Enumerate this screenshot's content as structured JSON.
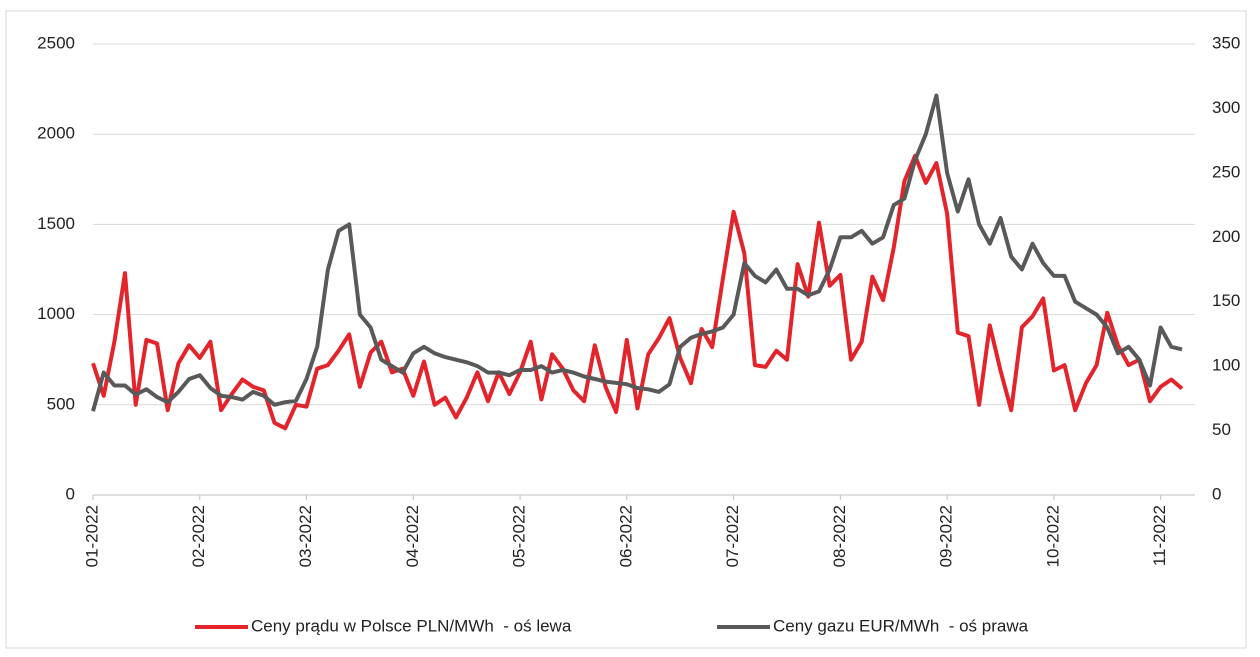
{
  "chart_data": {
    "type": "line",
    "categories": [
      "01-2022",
      null,
      null,
      null,
      null,
      null,
      null,
      null,
      null,
      null,
      "02-2022",
      null,
      null,
      null,
      null,
      null,
      null,
      null,
      null,
      null,
      "03-2022",
      null,
      null,
      null,
      null,
      null,
      null,
      null,
      null,
      null,
      "04-2022",
      null,
      null,
      null,
      null,
      null,
      null,
      null,
      null,
      null,
      "05-2022",
      null,
      null,
      null,
      null,
      null,
      null,
      null,
      null,
      null,
      "06-2022",
      null,
      null,
      null,
      null,
      null,
      null,
      null,
      null,
      null,
      "07-2022",
      null,
      null,
      null,
      null,
      null,
      null,
      null,
      null,
      null,
      "08-2022",
      null,
      null,
      null,
      null,
      null,
      null,
      null,
      null,
      null,
      "09-2022",
      null,
      null,
      null,
      null,
      null,
      null,
      null,
      null,
      null,
      "10-2022",
      null,
      null,
      null,
      null,
      null,
      null,
      null,
      null,
      null,
      "11-2022",
      null,
      null
    ],
    "series": [
      {
        "name": "Ceny prądu w Polsce PLN/MWh  - oś lewa",
        "color": "#e3242b",
        "values": [
          730,
          550,
          850,
          1230,
          500,
          860,
          840,
          470,
          730,
          830,
          760,
          850,
          470,
          560,
          640,
          600,
          580,
          400,
          370,
          500,
          490,
          700,
          720,
          800,
          890,
          600,
          790,
          850,
          680,
          700,
          550,
          740,
          500,
          540,
          430,
          540,
          680,
          520,
          680,
          560,
          680,
          850,
          530,
          780,
          700,
          580,
          520,
          830,
          600,
          460,
          860,
          480,
          780,
          870,
          980,
          760,
          620,
          920,
          820,
          1200,
          1570,
          1340,
          720,
          710,
          800,
          750,
          1280,
          1100,
          1510,
          1160,
          1220,
          750,
          850,
          1210,
          1080,
          1370,
          1740,
          1880,
          1730,
          1840,
          1560,
          900,
          880,
          500,
          940,
          690,
          470,
          930,
          990,
          1090,
          690,
          720,
          470,
          620,
          720,
          1010,
          830,
          720,
          750,
          520,
          600,
          640,
          590
        ]
      },
      {
        "name": "Ceny gazu EUR/MWh  - oś prawa",
        "color": "#595959",
        "axis": "y2",
        "values": [
          65,
          95,
          85,
          85,
          78,
          82,
          76,
          72,
          80,
          90,
          93,
          83,
          77,
          76,
          74,
          80,
          77,
          70,
          72,
          73,
          90,
          115,
          175,
          205,
          210,
          140,
          130,
          105,
          100,
          95,
          110,
          115,
          110,
          107,
          105,
          103,
          100,
          95,
          95,
          93,
          97,
          97,
          100,
          95,
          97,
          95,
          92,
          90,
          88,
          87,
          86,
          83,
          82,
          80,
          86,
          115,
          122,
          125,
          127,
          130,
          140,
          180,
          170,
          165,
          175,
          160,
          160,
          155,
          158,
          175,
          200,
          200,
          205,
          195,
          200,
          225,
          230,
          260,
          280,
          310,
          250,
          220,
          245,
          210,
          195,
          215,
          185,
          175,
          195,
          180,
          170,
          170,
          150,
          145,
          140,
          130,
          110,
          115,
          105,
          85,
          130,
          115,
          113
        ]
      }
    ],
    "ylim": [
      0,
      2500
    ],
    "yticks": [
      0,
      500,
      1000,
      1500,
      2000,
      2500
    ],
    "y2lim": [
      0,
      350
    ],
    "y2ticks": [
      0,
      50,
      100,
      150,
      200,
      250,
      300,
      350
    ],
    "grid": true
  }
}
